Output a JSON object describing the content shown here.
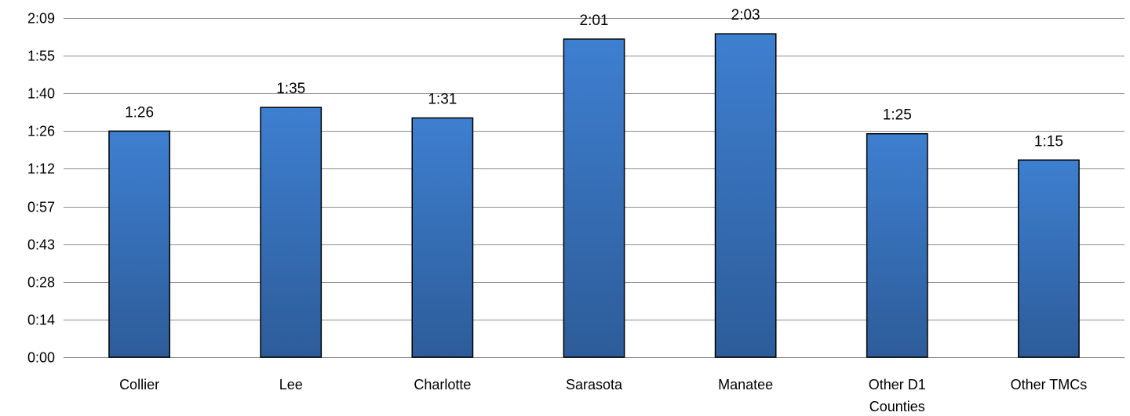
{
  "chart_data": {
    "type": "bar",
    "title": "",
    "xlabel": "",
    "ylabel": "",
    "categories": [
      "Collier",
      "Lee",
      "Charlotte",
      "Sarasota",
      "Manatee",
      "Other D1 Counties",
      "Other TMCs"
    ],
    "values": [
      86,
      95,
      91,
      121,
      123,
      85,
      75
    ],
    "data_labels": [
      "1:26",
      "1:35",
      "1:31",
      "2:01",
      "2:03",
      "1:25",
      "1:15"
    ],
    "ylim": [
      0,
      129
    ],
    "yticks": [
      0,
      14.333,
      28.667,
      43,
      57.333,
      71.667,
      86,
      100.333,
      114.667,
      129
    ],
    "ytick_labels": [
      "0:00",
      "0:14",
      "0:28",
      "0:43",
      "0:57",
      "1:12",
      "1:26",
      "1:40",
      "1:55",
      "2:09"
    ],
    "value_unit": "seconds (values shown as m:ss)",
    "grid": true,
    "legend": "none",
    "colors": {
      "bar_top": "#3e7fd0",
      "bar_bottom": "#2d5c99",
      "bar_edge": "#000000",
      "grid": "#8c8c8c"
    }
  }
}
